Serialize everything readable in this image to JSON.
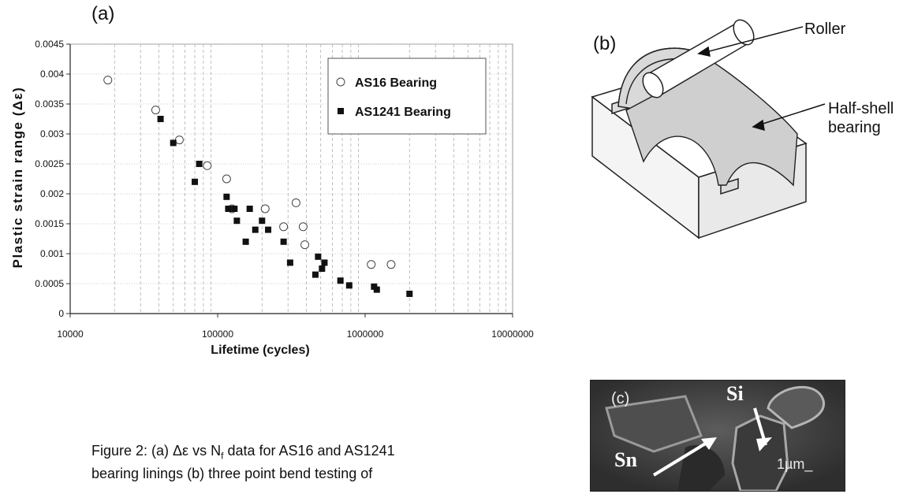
{
  "panel_a": {
    "label": "(a)",
    "chart_data": {
      "type": "scatter",
      "xscale": "log",
      "xlim": [
        10000,
        10000000
      ],
      "ylim": [
        0,
        0.0045
      ],
      "xlabel": "Lifetime (cycles)",
      "ylabel": "Plastic strain range (Δε)",
      "x_ticks": [
        "10000",
        "100000",
        "1000000",
        "10000000"
      ],
      "y_ticks": [
        "0",
        "0.0005",
        "0.001",
        "0.0015",
        "0.002",
        "0.0025",
        "0.003",
        "0.0035",
        "0.004",
        "0.0045"
      ],
      "grid": "vertical minor dashed, horizontal dotted",
      "legend_position": "top-right",
      "series": [
        {
          "name": "AS16 Bearing",
          "marker": "open-circle",
          "points": [
            [
              18000,
              0.0039
            ],
            [
              38000,
              0.0034
            ],
            [
              55000,
              0.0029
            ],
            [
              85000,
              0.00247
            ],
            [
              115000,
              0.00225
            ],
            [
              125000,
              0.00175
            ],
            [
              210000,
              0.00175
            ],
            [
              280000,
              0.00145
            ],
            [
              340000,
              0.00185
            ],
            [
              380000,
              0.00145
            ],
            [
              390000,
              0.00115
            ],
            [
              1100000,
              0.00082
            ],
            [
              1500000,
              0.00082
            ]
          ]
        },
        {
          "name": "AS1241 Bearing",
          "marker": "filled-square",
          "points": [
            [
              41000,
              0.00325
            ],
            [
              50000,
              0.00285
            ],
            [
              70000,
              0.0022
            ],
            [
              75000,
              0.0025
            ],
            [
              115000,
              0.00195
            ],
            [
              118000,
              0.00175
            ],
            [
              130000,
              0.00175
            ],
            [
              135000,
              0.00155
            ],
            [
              155000,
              0.0012
            ],
            [
              165000,
              0.00175
            ],
            [
              180000,
              0.0014
            ],
            [
              200000,
              0.00155
            ],
            [
              220000,
              0.0014
            ],
            [
              280000,
              0.0012
            ],
            [
              310000,
              0.00085
            ],
            [
              460000,
              0.00065
            ],
            [
              480000,
              0.00095
            ],
            [
              510000,
              0.00075
            ],
            [
              530000,
              0.00085
            ],
            [
              680000,
              0.00055
            ],
            [
              780000,
              0.00047
            ],
            [
              1150000,
              0.00045
            ],
            [
              1200000,
              0.0004
            ],
            [
              2000000,
              0.00033
            ]
          ]
        }
      ]
    }
  },
  "panel_b": {
    "label": "(b)",
    "roller_label": "Roller",
    "bearing_label_line1": "Half-shell",
    "bearing_label_line2": "bearing"
  },
  "panel_c": {
    "label": "(c)",
    "si_label": "Si",
    "sn_label": "Sn",
    "scale_label": "1µm_"
  },
  "caption": {
    "line1": "Figure 2: (a) Δε vs N",
    "line1_sub": "f",
    "line1_rest": " data for AS16 and AS1241",
    "line2": "bearing linings (b) three point bend testing of"
  }
}
